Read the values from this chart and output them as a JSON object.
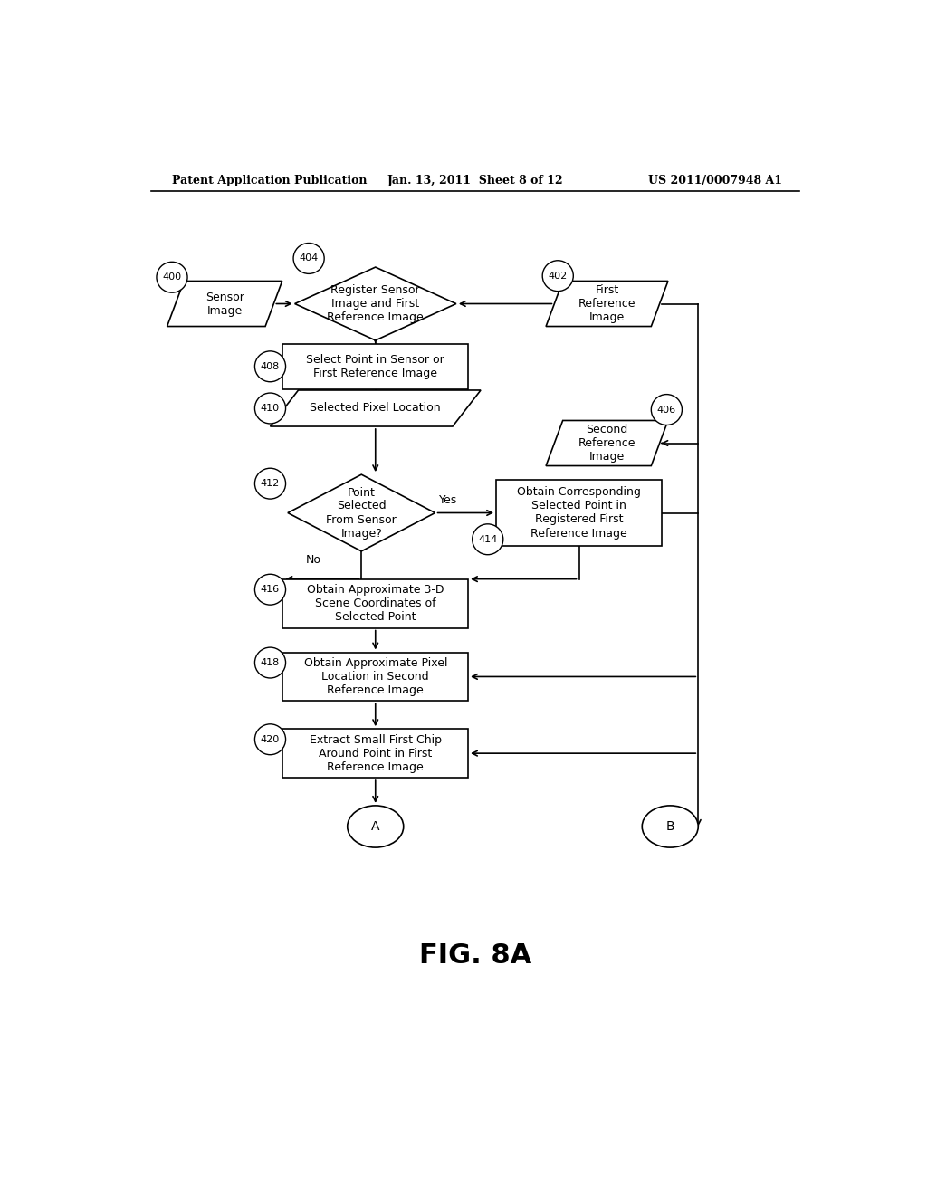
{
  "bg_color": "#ffffff",
  "header_left": "Patent Application Publication",
  "header_center": "Jan. 13, 2011  Sheet 8 of 12",
  "header_right": "US 2011/0007948 A1",
  "fig_label": "FIG. 8A"
}
